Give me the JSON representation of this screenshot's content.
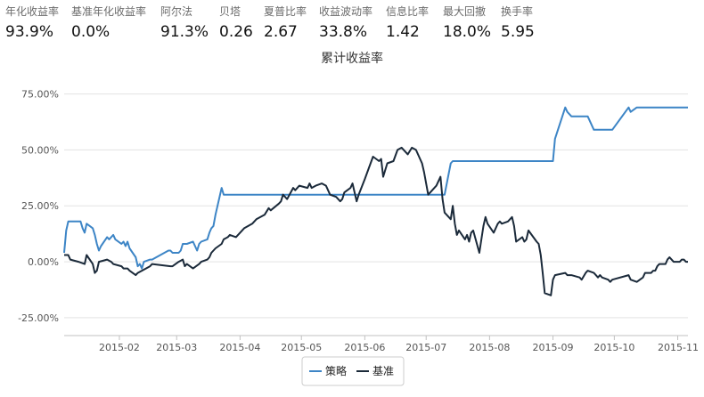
{
  "metrics": [
    {
      "label": "年化收益率",
      "value": "93.9%"
    },
    {
      "label": "基准年化收益率",
      "value": "0.0%"
    },
    {
      "label": "阿尔法",
      "value": "91.3%"
    },
    {
      "label": "贝塔",
      "value": "0.26"
    },
    {
      "label": "夏普比率",
      "value": "2.67"
    },
    {
      "label": "收益波动率",
      "value": "33.8%"
    },
    {
      "label": "信息比率",
      "value": "1.42"
    },
    {
      "label": "最大回撤",
      "value": "18.0%"
    },
    {
      "label": "换手率",
      "value": "5.95"
    }
  ],
  "colors": {
    "strategy": "#3d85c6",
    "benchmark": "#1b2a3a",
    "grid": "#e3e3e3",
    "axis": "#c0c0c0"
  },
  "chart_data": {
    "type": "line",
    "title": "累计收益率",
    "ytick_labels": [
      "75.00%",
      "50.00%",
      "25.00%",
      "0.00%",
      "-25.00%"
    ],
    "yticks": [
      75,
      50,
      25,
      0,
      -25
    ],
    "ylim": [
      -33,
      82
    ],
    "xlim": [
      "2015-01-05",
      "2015-11-06"
    ],
    "xtick_labels": [
      "2015-02",
      "2015-03",
      "2015-04",
      "2015-05",
      "2015-06",
      "2015-07",
      "2015-08",
      "2015-09",
      "2015-10",
      "2015-11"
    ],
    "xticks": [
      "2015-02-01",
      "2015-03-01",
      "2015-04-01",
      "2015-05-01",
      "2015-06-01",
      "2015-07-01",
      "2015-08-01",
      "2015-09-01",
      "2015-10-01",
      "2015-11-01"
    ],
    "grid": true,
    "legend": "bottom-center",
    "series": [
      {
        "name": "策略",
        "color": "#3d85c6",
        "points": [
          [
            "2015-01-05",
            4
          ],
          [
            "2015-01-06",
            14
          ],
          [
            "2015-01-07",
            18
          ],
          [
            "2015-01-08",
            18
          ],
          [
            "2015-01-09",
            18
          ],
          [
            "2015-01-12",
            18
          ],
          [
            "2015-01-13",
            18
          ],
          [
            "2015-01-14",
            15
          ],
          [
            "2015-01-15",
            13
          ],
          [
            "2015-01-16",
            17
          ],
          [
            "2015-01-19",
            15
          ],
          [
            "2015-01-20",
            12
          ],
          [
            "2015-01-21",
            8
          ],
          [
            "2015-01-22",
            5
          ],
          [
            "2015-01-23",
            7
          ],
          [
            "2015-01-26",
            11
          ],
          [
            "2015-01-27",
            10
          ],
          [
            "2015-01-28",
            11
          ],
          [
            "2015-01-29",
            12
          ],
          [
            "2015-01-30",
            10
          ],
          [
            "2015-02-02",
            8
          ],
          [
            "2015-02-03",
            9
          ],
          [
            "2015-02-04",
            7
          ],
          [
            "2015-02-05",
            9
          ],
          [
            "2015-02-06",
            6
          ],
          [
            "2015-02-09",
            2
          ],
          [
            "2015-02-10",
            -2
          ],
          [
            "2015-02-11",
            -1
          ],
          [
            "2015-02-12",
            -3
          ],
          [
            "2015-02-13",
            0
          ],
          [
            "2015-02-16",
            1
          ],
          [
            "2015-02-17",
            1
          ],
          [
            "2015-02-25",
            5
          ],
          [
            "2015-02-26",
            5
          ],
          [
            "2015-02-27",
            4
          ],
          [
            "2015-03-02",
            4
          ],
          [
            "2015-03-03",
            5
          ],
          [
            "2015-03-04",
            8
          ],
          [
            "2015-03-05",
            8
          ],
          [
            "2015-03-06",
            8
          ],
          [
            "2015-03-09",
            9
          ],
          [
            "2015-03-10",
            7
          ],
          [
            "2015-03-11",
            5
          ],
          [
            "2015-03-12",
            8
          ],
          [
            "2015-03-13",
            9
          ],
          [
            "2015-03-16",
            10
          ],
          [
            "2015-03-17",
            13
          ],
          [
            "2015-03-18",
            15
          ],
          [
            "2015-03-19",
            16
          ],
          [
            "2015-03-20",
            21
          ],
          [
            "2015-03-23",
            33
          ],
          [
            "2015-03-24",
            30
          ],
          [
            "2015-04-15",
            30
          ],
          [
            "2015-05-15",
            30
          ],
          [
            "2015-06-15",
            30
          ],
          [
            "2015-07-10",
            30
          ],
          [
            "2015-07-13",
            44
          ],
          [
            "2015-07-14",
            45
          ],
          [
            "2015-08-10",
            45
          ],
          [
            "2015-08-31",
            45
          ],
          [
            "2015-09-01",
            45
          ],
          [
            "2015-09-02",
            55
          ],
          [
            "2015-09-07",
            69
          ],
          [
            "2015-09-08",
            67
          ],
          [
            "2015-09-10",
            65
          ],
          [
            "2015-09-18",
            65
          ],
          [
            "2015-09-21",
            59
          ],
          [
            "2015-09-30",
            59
          ],
          [
            "2015-10-08",
            69
          ],
          [
            "2015-10-09",
            67
          ],
          [
            "2015-10-12",
            69
          ],
          [
            "2015-11-06",
            69
          ]
        ]
      },
      {
        "name": "基准",
        "color": "#1b2a3a",
        "points": [
          [
            "2015-01-05",
            3
          ],
          [
            "2015-01-07",
            3
          ],
          [
            "2015-01-08",
            1
          ],
          [
            "2015-01-12",
            0
          ],
          [
            "2015-01-15",
            -1
          ],
          [
            "2015-01-16",
            3
          ],
          [
            "2015-01-19",
            -1
          ],
          [
            "2015-01-20",
            -5
          ],
          [
            "2015-01-21",
            -4
          ],
          [
            "2015-01-22",
            0
          ],
          [
            "2015-01-26",
            1
          ],
          [
            "2015-01-28",
            0
          ],
          [
            "2015-01-29",
            -1
          ],
          [
            "2015-02-02",
            -2
          ],
          [
            "2015-02-03",
            -3
          ],
          [
            "2015-02-05",
            -3
          ],
          [
            "2015-02-06",
            -4
          ],
          [
            "2015-02-09",
            -6
          ],
          [
            "2015-02-10",
            -5
          ],
          [
            "2015-02-12",
            -4
          ],
          [
            "2015-02-16",
            -2
          ],
          [
            "2015-02-17",
            -1
          ],
          [
            "2015-02-26",
            -2
          ],
          [
            "2015-02-27",
            -2
          ],
          [
            "2015-03-02",
            0
          ],
          [
            "2015-03-04",
            1
          ],
          [
            "2015-03-05",
            -2
          ],
          [
            "2015-03-06",
            -1
          ],
          [
            "2015-03-09",
            -3
          ],
          [
            "2015-03-12",
            -1
          ],
          [
            "2015-03-13",
            0
          ],
          [
            "2015-03-16",
            1
          ],
          [
            "2015-03-17",
            2
          ],
          [
            "2015-03-18",
            4
          ],
          [
            "2015-03-20",
            6
          ],
          [
            "2015-03-23",
            8
          ],
          [
            "2015-03-24",
            10
          ],
          [
            "2015-03-26",
            11
          ],
          [
            "2015-03-27",
            12
          ],
          [
            "2015-03-30",
            11
          ],
          [
            "2015-04-01",
            13
          ],
          [
            "2015-04-03",
            15
          ],
          [
            "2015-04-07",
            17
          ],
          [
            "2015-04-09",
            19
          ],
          [
            "2015-04-13",
            21
          ],
          [
            "2015-04-15",
            24
          ],
          [
            "2015-04-16",
            23
          ],
          [
            "2015-04-20",
            26
          ],
          [
            "2015-04-21",
            27
          ],
          [
            "2015-04-22",
            30
          ],
          [
            "2015-04-24",
            28
          ],
          [
            "2015-04-27",
            33
          ],
          [
            "2015-04-28",
            32
          ],
          [
            "2015-04-30",
            34
          ],
          [
            "2015-05-04",
            33
          ],
          [
            "2015-05-05",
            35
          ],
          [
            "2015-05-06",
            33
          ],
          [
            "2015-05-08",
            34
          ],
          [
            "2015-05-11",
            35
          ],
          [
            "2015-05-13",
            34
          ],
          [
            "2015-05-15",
            30
          ],
          [
            "2015-05-18",
            29
          ],
          [
            "2015-05-19",
            28
          ],
          [
            "2015-05-20",
            27
          ],
          [
            "2015-05-21",
            28
          ],
          [
            "2015-05-22",
            31
          ],
          [
            "2015-05-25",
            33
          ],
          [
            "2015-05-26",
            35
          ],
          [
            "2015-05-28",
            27
          ],
          [
            "2015-05-29",
            30
          ],
          [
            "2015-06-01",
            37
          ],
          [
            "2015-06-03",
            42
          ],
          [
            "2015-06-05",
            47
          ],
          [
            "2015-06-08",
            45
          ],
          [
            "2015-06-09",
            46
          ],
          [
            "2015-06-10",
            38
          ],
          [
            "2015-06-12",
            44
          ],
          [
            "2015-06-15",
            45
          ],
          [
            "2015-06-17",
            50
          ],
          [
            "2015-06-19",
            51
          ],
          [
            "2015-06-22",
            48
          ],
          [
            "2015-06-24",
            51
          ],
          [
            "2015-06-26",
            50
          ],
          [
            "2015-06-29",
            44
          ],
          [
            "2015-06-30",
            40
          ],
          [
            "2015-07-02",
            30
          ],
          [
            "2015-07-06",
            34
          ],
          [
            "2015-07-08",
            38
          ],
          [
            "2015-07-09",
            28
          ],
          [
            "2015-07-10",
            22
          ],
          [
            "2015-07-13",
            19
          ],
          [
            "2015-07-14",
            25
          ],
          [
            "2015-07-15",
            17
          ],
          [
            "2015-07-16",
            12
          ],
          [
            "2015-07-17",
            14
          ],
          [
            "2015-07-20",
            10
          ],
          [
            "2015-07-21",
            12
          ],
          [
            "2015-07-22",
            9
          ],
          [
            "2015-07-23",
            13
          ],
          [
            "2015-07-24",
            14
          ],
          [
            "2015-07-27",
            4
          ],
          [
            "2015-07-28",
            10
          ],
          [
            "2015-07-29",
            16
          ],
          [
            "2015-07-30",
            20
          ],
          [
            "2015-07-31",
            17
          ],
          [
            "2015-08-03",
            13
          ],
          [
            "2015-08-05",
            17
          ],
          [
            "2015-08-06",
            18
          ],
          [
            "2015-08-07",
            17
          ],
          [
            "2015-08-10",
            18
          ],
          [
            "2015-08-11",
            19
          ],
          [
            "2015-08-12",
            20
          ],
          [
            "2015-08-13",
            16
          ],
          [
            "2015-08-14",
            9
          ],
          [
            "2015-08-17",
            11
          ],
          [
            "2015-08-18",
            9
          ],
          [
            "2015-08-19",
            10
          ],
          [
            "2015-08-20",
            14
          ],
          [
            "2015-08-24",
            9
          ],
          [
            "2015-08-25",
            8
          ],
          [
            "2015-08-26",
            3
          ],
          [
            "2015-08-27",
            -5
          ],
          [
            "2015-08-28",
            -14
          ],
          [
            "2015-08-31",
            -15
          ],
          [
            "2015-09-01",
            -8
          ],
          [
            "2015-09-02",
            -6
          ],
          [
            "2015-09-07",
            -5
          ],
          [
            "2015-09-08",
            -6
          ],
          [
            "2015-09-10",
            -6
          ],
          [
            "2015-09-14",
            -7
          ],
          [
            "2015-09-15",
            -8
          ],
          [
            "2015-09-17",
            -5
          ],
          [
            "2015-09-18",
            -4
          ],
          [
            "2015-09-21",
            -5
          ],
          [
            "2015-09-22",
            -6
          ],
          [
            "2015-09-23",
            -7
          ],
          [
            "2015-09-24",
            -6
          ],
          [
            "2015-09-25",
            -7
          ],
          [
            "2015-09-28",
            -8
          ],
          [
            "2015-09-29",
            -9
          ],
          [
            "2015-09-30",
            -8
          ],
          [
            "2015-10-08",
            -6
          ],
          [
            "2015-10-09",
            -8
          ],
          [
            "2015-10-12",
            -9
          ],
          [
            "2015-10-15",
            -7
          ],
          [
            "2015-10-16",
            -5
          ],
          [
            "2015-10-19",
            -5
          ],
          [
            "2015-10-20",
            -4
          ],
          [
            "2015-10-21",
            -4
          ],
          [
            "2015-10-22",
            -2
          ],
          [
            "2015-10-23",
            -1
          ],
          [
            "2015-10-26",
            -1
          ],
          [
            "2015-10-27",
            1
          ],
          [
            "2015-10-28",
            2
          ],
          [
            "2015-10-29",
            1
          ],
          [
            "2015-10-30",
            0
          ],
          [
            "2015-11-02",
            0
          ],
          [
            "2015-11-03",
            1
          ],
          [
            "2015-11-04",
            1
          ],
          [
            "2015-11-05",
            0
          ],
          [
            "2015-11-06",
            0
          ]
        ]
      }
    ]
  }
}
